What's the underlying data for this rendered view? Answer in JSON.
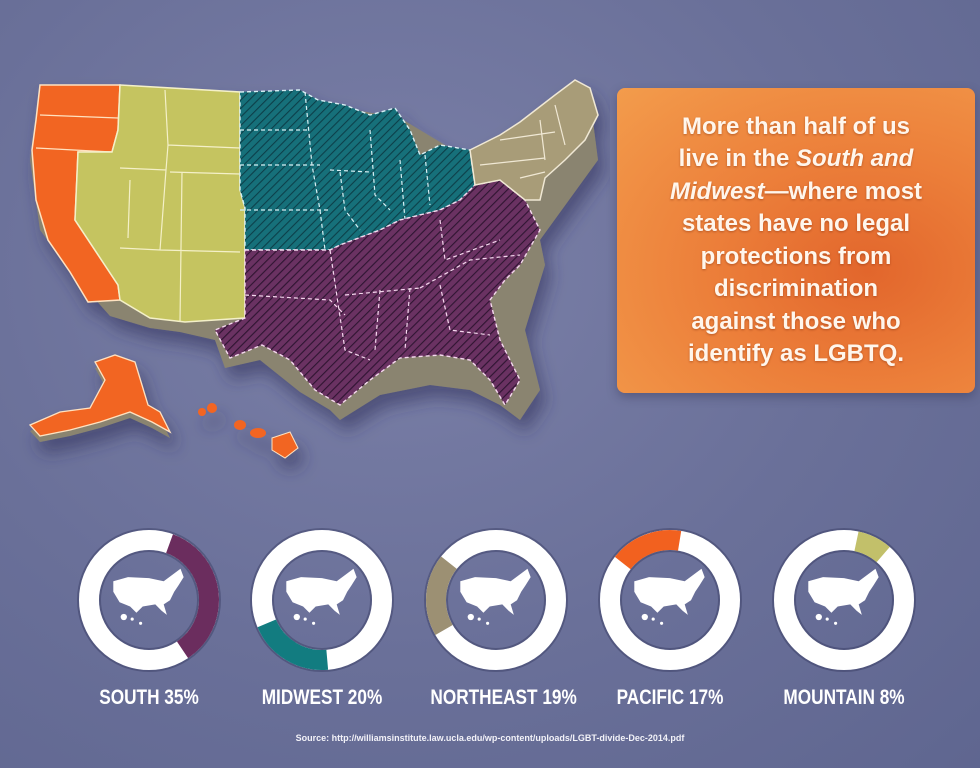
{
  "callout": {
    "line1": "More than half of us",
    "line2a": "live in the ",
    "line2b": "South and",
    "line3a": "Midwest",
    "line3b": "—where most",
    "line4": "states have no legal",
    "line5": "protections from",
    "line6": "discrimination",
    "line7": "against those who",
    "line8": "identify as LGBTQ."
  },
  "map": {
    "regions": [
      {
        "name": "Pacific",
        "color": "#f26522",
        "pattern": "solid"
      },
      {
        "name": "Mountain",
        "color": "#c5c460",
        "pattern": "solid"
      },
      {
        "name": "Midwest",
        "color": "#15707a",
        "pattern": "hatched"
      },
      {
        "name": "South",
        "color": "#5e2a55",
        "pattern": "hatched"
      },
      {
        "name": "Northeast",
        "color": "#a89c78",
        "pattern": "solid"
      }
    ]
  },
  "donuts": [
    {
      "label": "SOUTH 35%",
      "region": "South",
      "percent": 35,
      "start_deg": 20,
      "color": "#6b2d5e"
    },
    {
      "label": "MIDWEST 20%",
      "region": "Midwest",
      "percent": 20,
      "start_deg": 175,
      "color": "#127c80"
    },
    {
      "label": "NORTHEAST 19%",
      "region": "Northeast",
      "percent": 19,
      "start_deg": 240,
      "color": "#9c9073"
    },
    {
      "label": "PACIFIC 17%",
      "region": "Pacific",
      "percent": 17,
      "start_deg": 308,
      "color": "#f2611f"
    },
    {
      "label": "MOUNTAIN 8%",
      "region": "Mountain",
      "percent": 8,
      "start_deg": 12,
      "color": "#c2c06a"
    }
  ],
  "colors": {
    "background": "#6a7099",
    "ring": "#ffffff",
    "callout": "#ec7f3a"
  },
  "source": "Source: http://williamsinstitute.law.ucla.edu/wp-content/uploads/LGBT-divide-Dec-2014.pdf",
  "chart_data": {
    "type": "pie",
    "title": "More than half of us live in the South and Midwest—where most states have no legal protections from discrimination against those who identify as LGBTQ.",
    "categories": [
      "South",
      "Midwest",
      "Northeast",
      "Pacific",
      "Mountain"
    ],
    "values": [
      35,
      20,
      19,
      17,
      8
    ],
    "unit": "%",
    "series_colors": [
      "#6b2d5e",
      "#127c80",
      "#9c9073",
      "#f2611f",
      "#c2c06a"
    ],
    "labels": [
      "SOUTH 35%",
      "MIDWEST 20%",
      "NORTHEAST 19%",
      "PACIFIC 17%",
      "MOUNTAIN 8%"
    ],
    "source": "Source: http://williamsinstitute.law.ucla.edu/wp-content/uploads/LGBT-divide-Dec-2014.pdf"
  }
}
